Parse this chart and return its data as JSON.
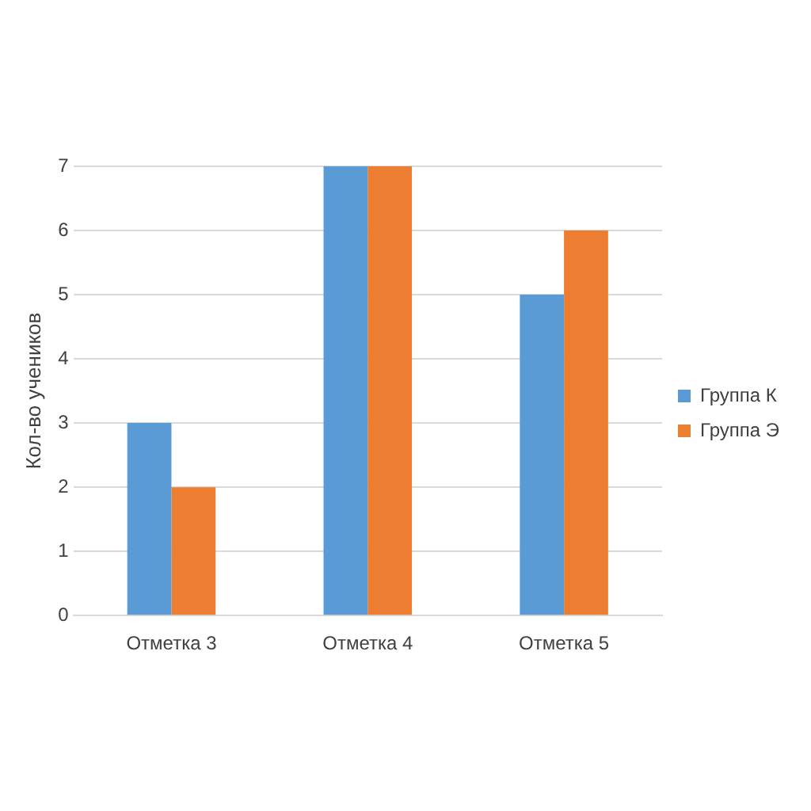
{
  "chart_data": {
    "type": "bar",
    "ylabel": "Кол-во учеников",
    "categories": [
      "Отметка 3",
      "Отметка 4",
      "Отметка 5"
    ],
    "series": [
      {
        "name": "Группа К",
        "color": "#5b9bd5",
        "values": [
          3,
          7,
          5
        ]
      },
      {
        "name": "Группа Э",
        "color": "#ed7d31",
        "values": [
          2,
          7,
          6
        ]
      }
    ],
    "ylim": [
      0,
      7
    ],
    "yticks": [
      0,
      1,
      2,
      3,
      4,
      5,
      6,
      7
    ],
    "grid": "y",
    "legend": "right"
  }
}
